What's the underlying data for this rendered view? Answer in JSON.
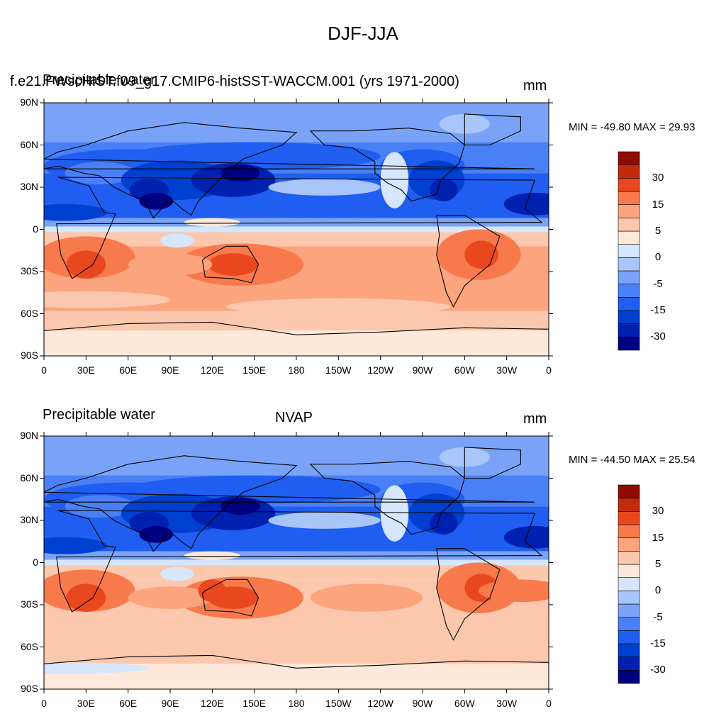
{
  "figure": {
    "title": "DJF-JJA"
  },
  "colors": {
    "levels": [
      "#000080",
      "#0020b0",
      "#0040d0",
      "#1f5ef0",
      "#4a80f5",
      "#7aa3f7",
      "#a9c6fb",
      "#d5e6fd",
      "#fde8d9",
      "#fcc8ad",
      "#fba47e",
      "#f87a4c",
      "#e9481f",
      "#c42b0c",
      "#8f0b04"
    ]
  },
  "panels": [
    {
      "left_title": "Precipitable water",
      "center_title": "f.e21.FWscHIST.f09_g17.CMIP6-histSST-WACCM.001 (yrs 1971-2000)",
      "right_title": "mm",
      "min_max": "MIN = -49.80 MAX =  29.93"
    },
    {
      "left_title": "Precipitable water",
      "center_title": "NVAP",
      "right_title": "mm",
      "min_max": "MIN = -44.50 MAX =  25.54"
    }
  ],
  "axes": {
    "lat_labels": [
      "90N",
      "60N",
      "30N",
      "0",
      "30S",
      "60S",
      "90S"
    ],
    "lon_labels": [
      "0",
      "30E",
      "60E",
      "90E",
      "120E",
      "150E",
      "180",
      "150W",
      "120W",
      "90W",
      "60W",
      "30W",
      "0"
    ]
  },
  "colorbar_labels": [
    "30",
    "15",
    "5",
    "0",
    "-5",
    "-15",
    "-30"
  ],
  "chart_data": [
    {
      "type": "heatmap",
      "title": "f.e21.FWscHIST.f09_g17.CMIP6-histSST-WACCM.001 (yrs 1971-2000)",
      "subtitle_left": "Precipitable water",
      "units": "mm",
      "min": -49.8,
      "max": 29.93,
      "xlim": [
        0,
        360
      ],
      "ylim": [
        -90,
        90
      ],
      "contour_levels": [
        -40,
        -30,
        -20,
        -15,
        -10,
        -5,
        -2,
        0,
        2,
        5,
        10,
        15,
        20,
        30,
        40
      ]
    },
    {
      "type": "heatmap",
      "title": "NVAP",
      "subtitle_left": "Precipitable water",
      "units": "mm",
      "min": -44.5,
      "max": 25.54,
      "xlim": [
        0,
        360
      ],
      "ylim": [
        -90,
        90
      ],
      "contour_levels": [
        -40,
        -30,
        -20,
        -15,
        -10,
        -5,
        -2,
        0,
        2,
        5,
        10,
        15,
        20,
        30,
        40
      ]
    }
  ]
}
